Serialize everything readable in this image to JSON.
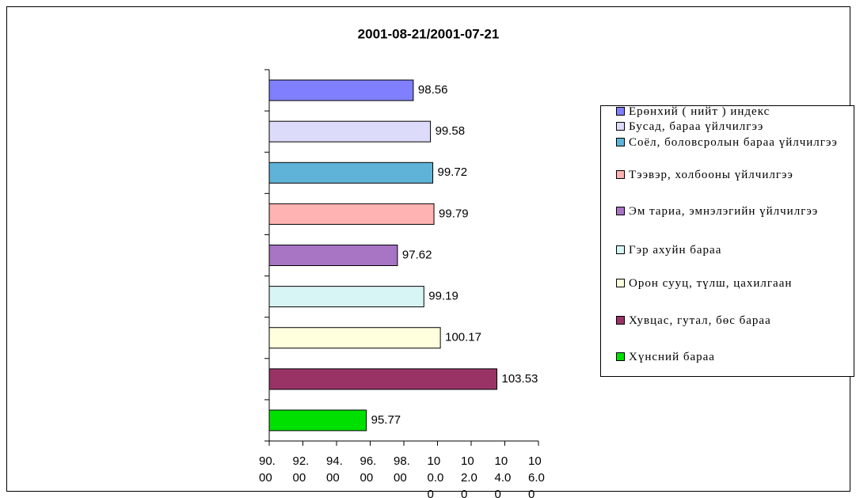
{
  "chart_data": {
    "type": "barh",
    "title": "2001-08-21/2001-07-21",
    "categories": [
      "Ерөнхий ( нийт ) индекс",
      "Бусад, бараа үйлчилгээ",
      "Соёл, боловсролын бараа үйлчилгээ",
      "Тээвэр, холбооны үйлчилгээ",
      "Эм тариа, эмнэлэгийн үйлчилгээ",
      "Гэр ахуйн бараа",
      "Орон сууц, түлш, цахилгаан",
      "Хувцас, гутал, бөс бараа",
      "Хүнсний бараа"
    ],
    "values": [
      98.56,
      99.58,
      99.72,
      99.79,
      97.62,
      99.19,
      100.17,
      103.53,
      95.77
    ],
    "colors": [
      "#8080ff",
      "#dcdcfa",
      "#5fb3d9",
      "#ffb3b3",
      "#a874c4",
      "#d8f5f5",
      "#ffffde",
      "#993366",
      "#00e000"
    ],
    "xlim": [
      90,
      106
    ],
    "xticks": [
      {
        "value": 90,
        "label": "90.00"
      },
      {
        "value": 92,
        "label": "92.00"
      },
      {
        "value": 94,
        "label": "94.00"
      },
      {
        "value": 96,
        "label": "96.00"
      },
      {
        "value": 98,
        "label": "98.00"
      },
      {
        "value": 100,
        "label": "100.00"
      },
      {
        "value": 102,
        "label": "102.00"
      },
      {
        "value": 104,
        "label": "104.00"
      },
      {
        "value": 106,
        "label": "106.00"
      }
    ],
    "legend": "right"
  }
}
